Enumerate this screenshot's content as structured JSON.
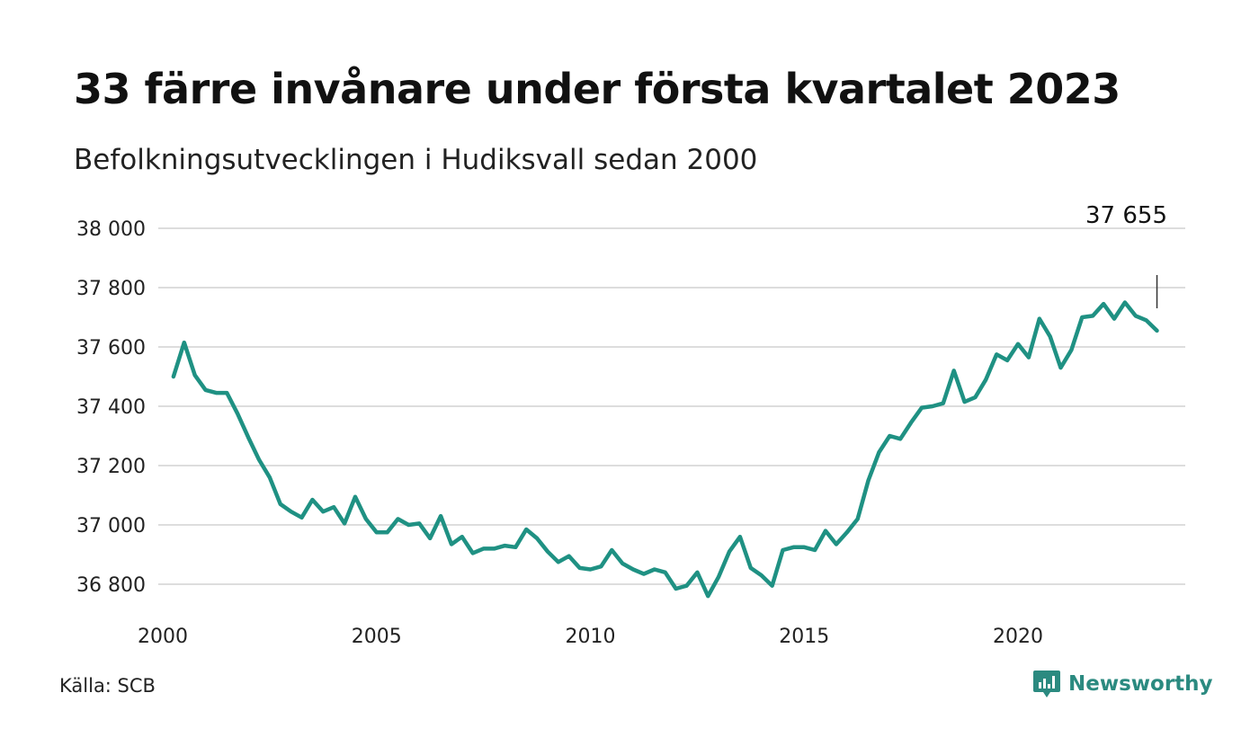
{
  "header": {
    "title": "33 färre invånare under första kvartalet 2023",
    "subtitle": "Befolkningsutvecklingen i Hudiksvall sedan 2000"
  },
  "footer": {
    "source": "Källa: SCB",
    "brand": "Newsworthy",
    "brand_icon": "bar-chart-icon"
  },
  "colors": {
    "line": "#1f9183",
    "grid": "#dddddd",
    "brand": "#2b8a80"
  },
  "chart_data": {
    "type": "line",
    "title": "33 färre invånare under första kvartalet 2023",
    "subtitle": "Befolkningsutvecklingen i Hudiksvall sedan 2000",
    "xlabel": "",
    "ylabel": "",
    "x_ticks": [
      2000,
      2005,
      2010,
      2015,
      2020
    ],
    "y_ticks": [
      36800,
      37000,
      37200,
      37400,
      37600,
      37800,
      38000
    ],
    "y_tick_labels": [
      "36 800",
      "37 000",
      "37 200",
      "37 400",
      "37 600",
      "37 800",
      "38 000"
    ],
    "ylim": [
      36780,
      38000
    ],
    "xlim": [
      2000,
      2023.5
    ],
    "grid": "horizontal",
    "annotation": {
      "text": "37 655",
      "x": 2023.25
    },
    "series": [
      {
        "x_start": 2000.25,
        "x_step": 0.25,
        "values": [
          37500,
          37615,
          37505,
          37455,
          37445,
          37445,
          37375,
          37295,
          37220,
          37160,
          37070,
          37045,
          37025,
          37085,
          37045,
          37060,
          37005,
          37095,
          37020,
          36975,
          36975,
          37020,
          37000,
          37005,
          36955,
          37030,
          36935,
          36960,
          36905,
          36920,
          36920,
          36930,
          36925,
          36985,
          36955,
          36910,
          36875,
          36895,
          36855,
          36850,
          36860,
          36915,
          36870,
          36850,
          36835,
          36850,
          36840,
          36785,
          36795,
          36840,
          36760,
          36825,
          36910,
          36960,
          36855,
          36830,
          36795,
          36915,
          36925,
          36925,
          36915,
          36980,
          36935,
          36975,
          37020,
          37150,
          37245,
          37300,
          37290,
          37345,
          37395,
          37400,
          37410,
          37520,
          37415,
          37430,
          37490,
          37575,
          37555,
          37610,
          37565,
          37695,
          37635,
          37530,
          37590,
          37700,
          37705,
          37745,
          37695,
          37750,
          37705,
          37690,
          37655
        ]
      }
    ]
  }
}
